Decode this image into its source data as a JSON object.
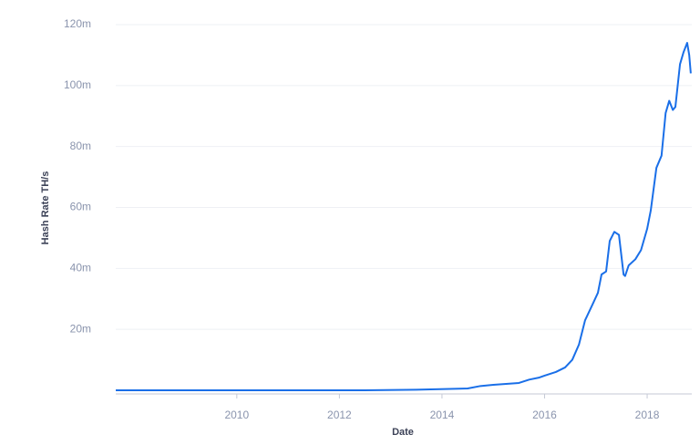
{
  "chart_data": {
    "type": "line",
    "x_label": "Date",
    "y_label": "Hash Rate TH/s",
    "x": [
      2007.64,
      2012.5,
      2013.5,
      2014.5,
      2014.75,
      2015.0,
      2015.5,
      2015.7,
      2015.9,
      2016.0,
      2016.22,
      2016.4,
      2016.54,
      2016.67,
      2016.79,
      2016.93,
      2017.04,
      2017.11,
      2017.2,
      2017.27,
      2017.36,
      2017.45,
      2017.54,
      2017.57,
      2017.64,
      2017.77,
      2017.88,
      2018.0,
      2018.07,
      2018.18,
      2018.28,
      2018.36,
      2018.43,
      2018.5,
      2018.55,
      2018.64,
      2018.71,
      2018.78,
      2018.82,
      2018.85
    ],
    "series": [
      {
        "color": "#1a6fe8",
        "values": [
          0,
          0,
          200000,
          600000,
          1400000,
          1800000,
          2400000,
          3500000,
          4200000,
          4800000,
          6000000,
          7500000,
          10000000,
          15000000,
          23000000,
          28000000,
          32000000,
          38000000,
          39000000,
          49000000,
          52000000,
          51000000,
          38000000,
          37500000,
          41000000,
          43000000,
          46000000,
          53000000,
          59000000,
          73000000,
          77000000,
          91000000,
          95000000,
          92000000,
          93000000,
          107000000,
          111000000,
          114000000,
          110000000,
          104000000
        ]
      }
    ],
    "xlim": [
      2007.64,
      2018.87
    ],
    "xticks": [
      2010,
      2012,
      2014,
      2016,
      2018
    ],
    "ylim": [
      0,
      120000000
    ],
    "yticks": [
      {
        "value": 20000000,
        "label": "20m"
      },
      {
        "value": 40000000,
        "label": "40m"
      },
      {
        "value": 60000000,
        "label": "60m"
      },
      {
        "value": 80000000,
        "label": "80m"
      },
      {
        "value": 100000000,
        "label": "100m"
      },
      {
        "value": 120000000,
        "label": "120m"
      }
    ],
    "grid": true
  }
}
